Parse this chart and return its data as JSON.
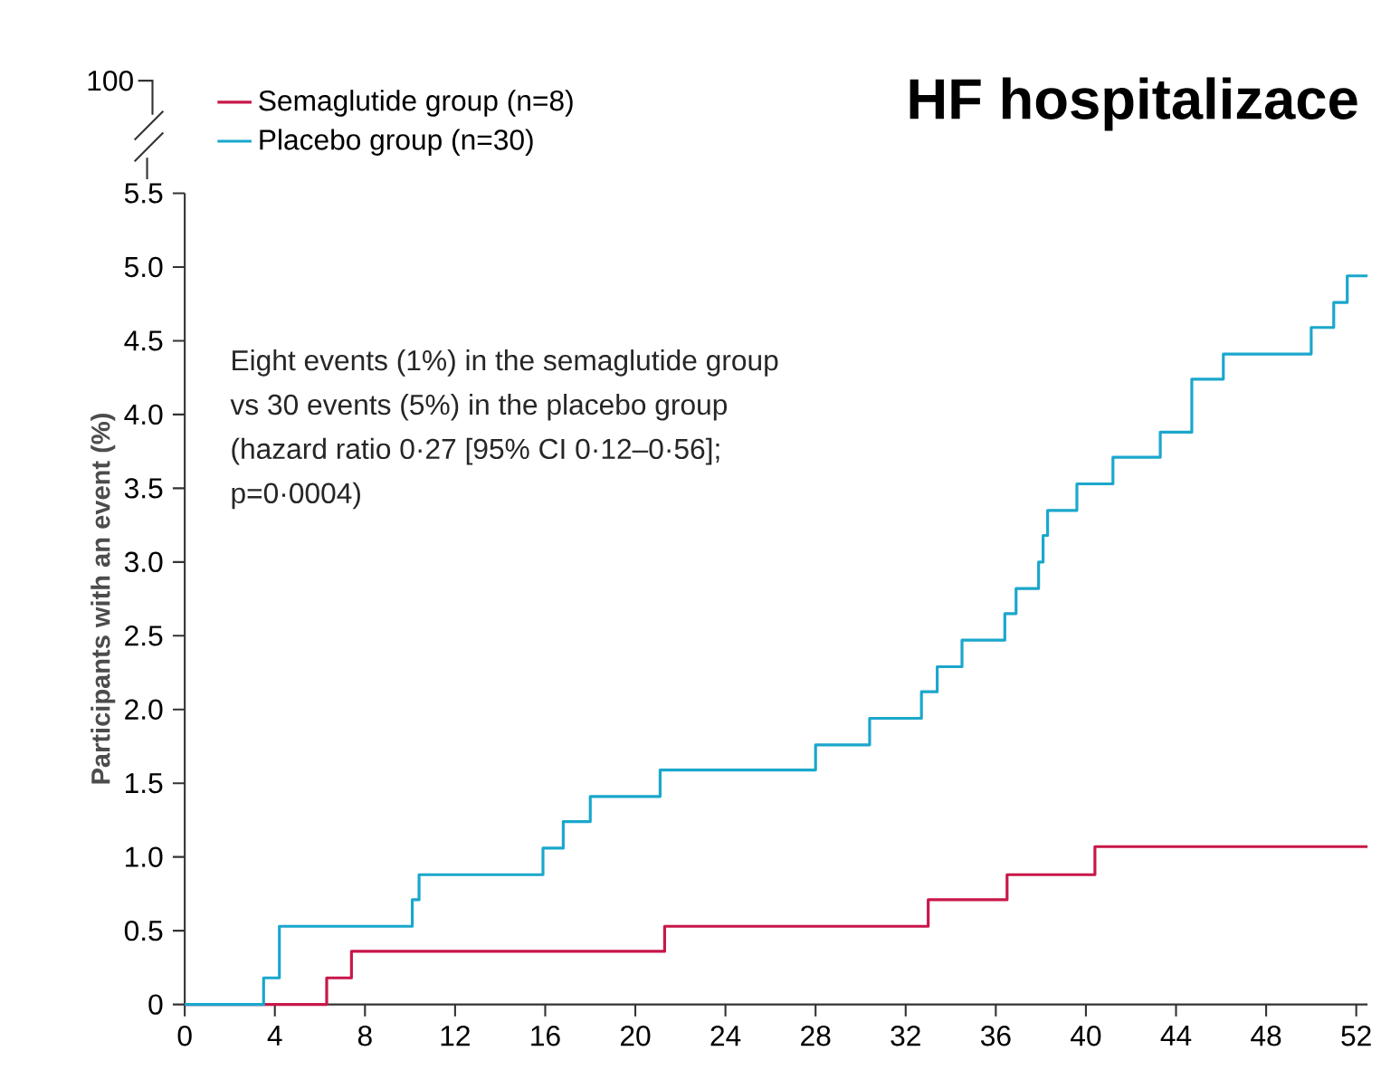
{
  "chart_data": {
    "type": "step",
    "title": "HF hospitalizace",
    "ylabel": "Participants with an event (%)",
    "annotations": [
      "100",
      "Eight events (1%) in the semaglutide group",
      "vs 30 events (5%) in the placebo group",
      "(hazard ratio 0·27 [95% CI 0·12–0·56];",
      "p=0·0004)"
    ],
    "series": [
      {
        "name": "Semaglutide group (n=8)",
        "color": "#c8174a",
        "x": [
          0,
          6.3,
          7.4,
          21.3,
          33.0,
          36.5,
          40.4,
          52.5
        ],
        "values": [
          0,
          0.18,
          0.36,
          0.53,
          0.71,
          0.88,
          1.07,
          1.07
        ]
      },
      {
        "name": "Placebo group (n=30)",
        "color": "#1aa7cc",
        "x": [
          0,
          3.5,
          4.2,
          10.1,
          10.4,
          15.9,
          16.8,
          18.0,
          21.1,
          28.0,
          30.4,
          32.7,
          33.4,
          34.5,
          36.4,
          36.9,
          37.9,
          38.1,
          38.3,
          39.6,
          41.2,
          43.3,
          44.7,
          46.1,
          50.0,
          51.0,
          51.6,
          52.5
        ],
        "values": [
          0,
          0.18,
          0.53,
          0.71,
          0.88,
          1.06,
          1.24,
          1.41,
          1.59,
          1.76,
          1.94,
          2.12,
          2.29,
          2.47,
          2.65,
          2.82,
          3.0,
          3.18,
          3.35,
          3.53,
          3.71,
          3.88,
          4.24,
          4.41,
          4.59,
          4.76,
          4.94,
          4.94
        ]
      }
    ],
    "xlim": [
      0,
      52.5
    ],
    "xticks": [
      0,
      4,
      8,
      12,
      16,
      20,
      24,
      28,
      32,
      36,
      40,
      44,
      48,
      52
    ],
    "ylim": [
      0,
      5.5
    ],
    "yticks": [
      0,
      0.5,
      {
        "value": 1,
        "label": "1.0"
      },
      1.5,
      {
        "value": 2,
        "label": "2.0"
      },
      2.5,
      {
        "value": 3,
        "label": "3.0"
      },
      3.5,
      {
        "value": 4,
        "label": "4.0"
      },
      4.5,
      {
        "value": 5,
        "label": "5.0"
      },
      5.5
    ],
    "grid": false,
    "legend": "top left",
    "line_style": "solid"
  }
}
